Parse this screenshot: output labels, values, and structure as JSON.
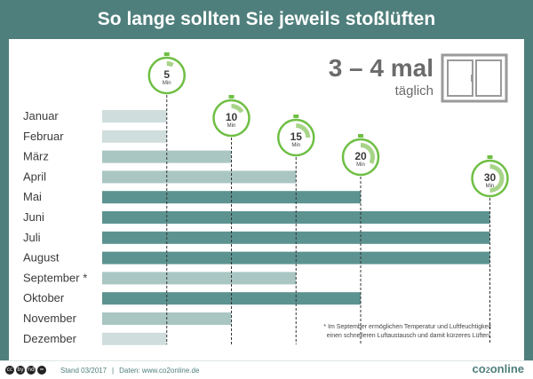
{
  "title": "So lange sollten Sie jeweils stoßlüften",
  "frequency": {
    "main": "3 – 4 mal",
    "sub": "täglich"
  },
  "footnote": [
    "* Im September ermöglichen Temperatur und Luftfeuchtigkeit",
    "einen schnelleren Luftaustausch und damit kürzeres Lüften."
  ],
  "footer": {
    "license_icons": [
      "cc",
      "by",
      "nd",
      "="
    ],
    "stand": "Stand 03/2017",
    "separator": "|",
    "source": "Daten: www.co2online.de",
    "brand_a": "co",
    "brand_b": "2",
    "brand_c": "online"
  },
  "colors": {
    "header": "#4f7f7c",
    "green": "#6fbf44",
    "timer_fill": "#a8d48a"
  },
  "chart_data": {
    "type": "bar",
    "orientation": "horizontal",
    "unit": "Min",
    "categories": [
      "Januar",
      "Februar",
      "März",
      "April",
      "Mai",
      "Juni",
      "Juli",
      "August",
      "September *",
      "Oktober",
      "November",
      "Dezember"
    ],
    "values": [
      5,
      5,
      10,
      15,
      20,
      30,
      30,
      30,
      15,
      20,
      10,
      5
    ],
    "timer_markers": [
      5,
      10,
      15,
      20,
      30
    ],
    "bar_colors": [
      "#cfdedc",
      "#cfdedc",
      "#a9c6c3",
      "#a9c6c3",
      "#5c9391",
      "#5c9391",
      "#5c9391",
      "#5c9391",
      "#a9c6c3",
      "#5c9391",
      "#a9c6c3",
      "#cfdedc"
    ]
  }
}
